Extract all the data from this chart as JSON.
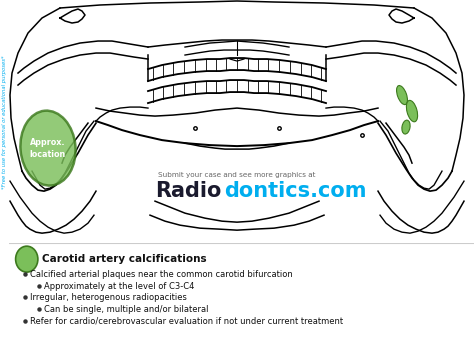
{
  "bg_color": "#ffffff",
  "green_fill": "#7bbf5a",
  "green_dark": "#3d7a1e",
  "cyan_text": "#00aeef",
  "side_text": "*Free to use for personal or educational purposes*",
  "submit_text": "Submit your case and see more graphics at",
  "radio_black": "Radio",
  "radio_cyan": "dontics.com",
  "legend_title": "Carotid artery calcifications",
  "bullets": [
    "Calcified arterial plaques near the common carotid bifurcation",
    "Approximately at the level of C3-C4",
    "Irregular, heterogenous radiopacities",
    "Can be single, multiple and/or bilateral",
    "Refer for cardio/cerebrovascular evaluation if not under current treatment"
  ],
  "bullet_indents": [
    0,
    1,
    0,
    1,
    0
  ],
  "approx_text": "Approx.\nlocation"
}
